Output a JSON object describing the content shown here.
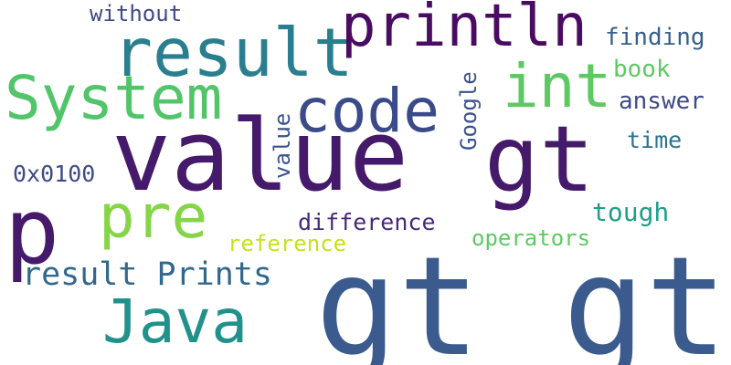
{
  "words": [
    {
      "text": "gt gt",
      "color": "#3b5b8f",
      "vertical": false
    },
    {
      "text": "value",
      "color": "#461a6a",
      "vertical": false
    },
    {
      "text": "gt",
      "color": "#461a6a",
      "vertical": false
    },
    {
      "text": "p",
      "color": "#461a6a",
      "vertical": false
    },
    {
      "text": "result",
      "color": "#2a7f8e",
      "vertical": false
    },
    {
      "text": "println",
      "color": "#4a0c62",
      "vertical": false
    },
    {
      "text": "System",
      "color": "#52c469",
      "vertical": false
    },
    {
      "text": "code",
      "color": "#3b4a8a",
      "vertical": false
    },
    {
      "text": "int",
      "color": "#5ec962",
      "vertical": false
    },
    {
      "text": "pre",
      "color": "#86d549",
      "vertical": false
    },
    {
      "text": "Java",
      "color": "#21918c",
      "vertical": false
    },
    {
      "text": "result Prints",
      "color": "#31688e",
      "vertical": false
    },
    {
      "text": "without",
      "color": "#3e4a89",
      "vertical": false
    },
    {
      "text": "finding",
      "color": "#355f8d",
      "vertical": false
    },
    {
      "text": "book",
      "color": "#5ec962",
      "vertical": false
    },
    {
      "text": "answer",
      "color": "#3e4a89",
      "vertical": false
    },
    {
      "text": "time",
      "color": "#2c728e",
      "vertical": false
    },
    {
      "text": "0x0100",
      "color": "#3e4a89",
      "vertical": false
    },
    {
      "text": "tough",
      "color": "#1f9e89",
      "vertical": false
    },
    {
      "text": "difference",
      "color": "#482878",
      "vertical": false
    },
    {
      "text": "operators",
      "color": "#5ec962",
      "vertical": false
    },
    {
      "text": "reference",
      "color": "#c8e020",
      "vertical": false
    },
    {
      "text": "Google",
      "color": "#3b528b",
      "vertical": true
    },
    {
      "text": "value",
      "color": "#3b528b",
      "vertical": true
    }
  ]
}
